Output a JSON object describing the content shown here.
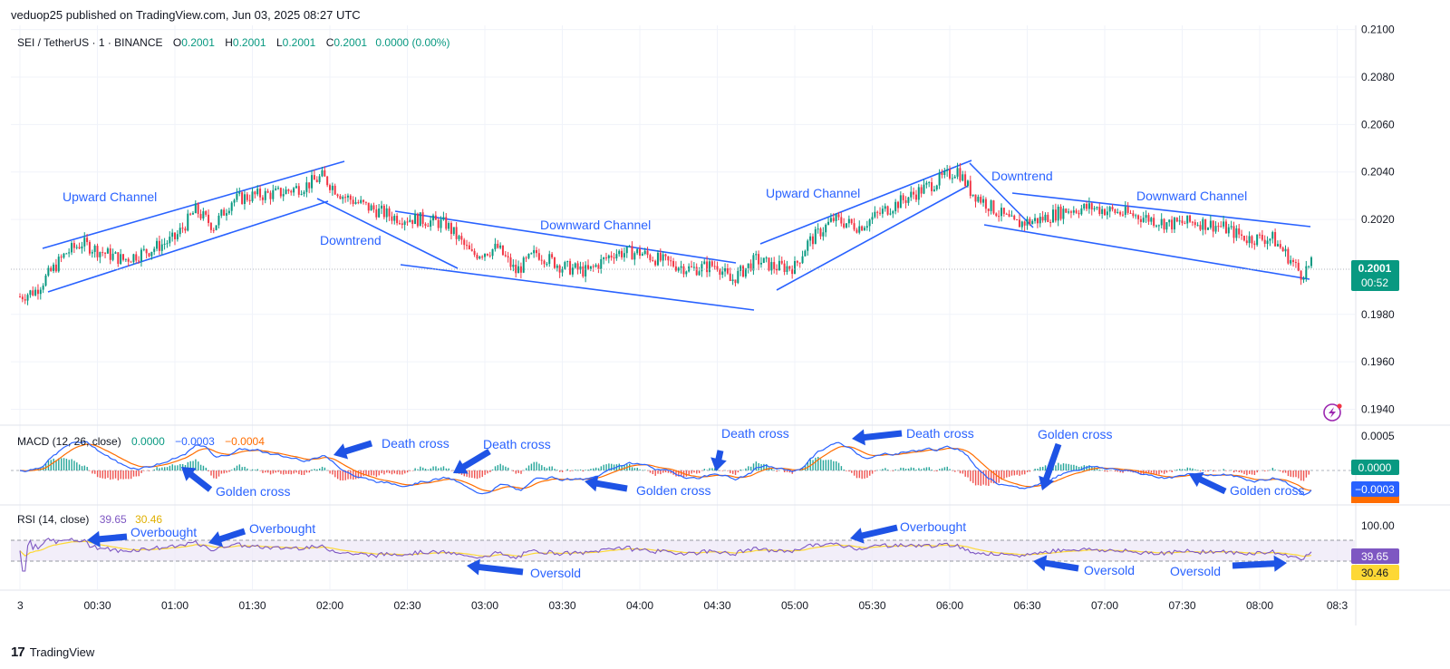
{
  "header": {
    "published": "veduop25 published on TradingView.com, Jun 03, 2025 08:27 UTC"
  },
  "legend": {
    "symbol": "SEI / TetherUS · 1 · BINANCE",
    "ohlc": [
      {
        "k": "O",
        "v": "0.2001"
      },
      {
        "k": "H",
        "v": "0.2001"
      },
      {
        "k": "L",
        "v": "0.2001"
      },
      {
        "k": "C",
        "v": "0.2001"
      }
    ],
    "change": "0.0000 (0.00%)"
  },
  "price_badge": {
    "price": "0.2001",
    "countdown": "00:52"
  },
  "macd": {
    "label": "MACD (12, 26, close)",
    "hist": "0.0000",
    "macd": "−0.0003",
    "signal": "−0.0004",
    "badge_hist": "0.0000",
    "badge_macd": "−0.0003",
    "tick": "0.0005"
  },
  "rsi": {
    "label": "RSI (14, close)",
    "rsi": "39.65",
    "ma": "30.46",
    "badge_rsi": "39.65",
    "badge_ma": "30.46",
    "tick": "100.00"
  },
  "footer": {
    "brand": "TradingView",
    "logo": "17"
  },
  "colors": {
    "up": "#089981",
    "down": "#f23645",
    "line": "#2962ff",
    "signal": "#ff6d00",
    "rsi": "#7e57c2",
    "rsi_ma": "#fdd835"
  },
  "chart_data": {
    "type": "candlestick",
    "title": "SEI / TetherUS · 1 · BINANCE",
    "price_axis": {
      "ticks": [
        "0.2100",
        "0.2080",
        "0.2060",
        "0.2040",
        "0.2020",
        "0.1980",
        "0.1960",
        "0.1940"
      ],
      "range": [
        0.1936,
        0.2101
      ]
    },
    "time_axis": {
      "ticks": [
        "3",
        "00:30",
        "01:00",
        "01:30",
        "02:00",
        "02:30",
        "03:00",
        "03:30",
        "04:00",
        "04:30",
        "05:00",
        "05:30",
        "06:00",
        "06:30",
        "07:00",
        "07:30",
        "08:00",
        "08:3"
      ]
    },
    "price_path": [
      {
        "t": "00:00",
        "p": 0.19875
      },
      {
        "t": "00:06",
        "p": 0.199
      },
      {
        "t": "00:12",
        "p": 0.1998
      },
      {
        "t": "00:18",
        "p": 0.2006
      },
      {
        "t": "00:24",
        "p": 0.201
      },
      {
        "t": "00:30",
        "p": 0.2007
      },
      {
        "t": "00:40",
        "p": 0.2003
      },
      {
        "t": "00:50",
        "p": 0.2007
      },
      {
        "t": "01:00",
        "p": 0.2012
      },
      {
        "t": "01:08",
        "p": 0.2024
      },
      {
        "t": "01:15",
        "p": 0.2017
      },
      {
        "t": "01:22",
        "p": 0.2028
      },
      {
        "t": "01:30",
        "p": 0.203
      },
      {
        "t": "01:40",
        "p": 0.2031
      },
      {
        "t": "01:50",
        "p": 0.2034
      },
      {
        "t": "01:57",
        "p": 0.2038
      },
      {
        "t": "02:05",
        "p": 0.203
      },
      {
        "t": "02:15",
        "p": 0.2025
      },
      {
        "t": "02:25",
        "p": 0.2021
      },
      {
        "t": "02:35",
        "p": 0.202
      },
      {
        "t": "02:45",
        "p": 0.2018
      },
      {
        "t": "02:55",
        "p": 0.2005
      },
      {
        "t": "03:05",
        "p": 0.2008
      },
      {
        "t": "03:12",
        "p": 0.1998
      },
      {
        "t": "03:20",
        "p": 0.2006
      },
      {
        "t": "03:30",
        "p": 0.2
      },
      {
        "t": "03:40",
        "p": 0.1998
      },
      {
        "t": "03:50",
        "p": 0.2006
      },
      {
        "t": "04:00",
        "p": 0.2006
      },
      {
        "t": "04:10",
        "p": 0.2002
      },
      {
        "t": "04:20",
        "p": 0.1999
      },
      {
        "t": "04:30",
        "p": 0.2001
      },
      {
        "t": "04:35",
        "p": 0.1994
      },
      {
        "t": "04:45",
        "p": 0.2003
      },
      {
        "t": "04:52",
        "p": 0.2
      },
      {
        "t": "05:00",
        "p": 0.2
      },
      {
        "t": "05:05",
        "p": 0.201
      },
      {
        "t": "05:15",
        "p": 0.202
      },
      {
        "t": "05:25",
        "p": 0.2017
      },
      {
        "t": "05:35",
        "p": 0.2024
      },
      {
        "t": "05:45",
        "p": 0.203
      },
      {
        "t": "05:55",
        "p": 0.2036
      },
      {
        "t": "06:03",
        "p": 0.2041
      },
      {
        "t": "06:08",
        "p": 0.2032
      },
      {
        "t": "06:15",
        "p": 0.2026
      },
      {
        "t": "06:25",
        "p": 0.2018
      },
      {
        "t": "06:35",
        "p": 0.202
      },
      {
        "t": "06:45",
        "p": 0.2024
      },
      {
        "t": "06:55",
        "p": 0.2025
      },
      {
        "t": "07:05",
        "p": 0.2023
      },
      {
        "t": "07:15",
        "p": 0.2021
      },
      {
        "t": "07:25",
        "p": 0.2018
      },
      {
        "t": "07:35",
        "p": 0.2019
      },
      {
        "t": "07:45",
        "p": 0.2017
      },
      {
        "t": "07:55",
        "p": 0.2012
      },
      {
        "t": "08:05",
        "p": 0.2012
      },
      {
        "t": "08:12",
        "p": 0.2003
      },
      {
        "t": "08:16",
        "p": 0.1997
      },
      {
        "t": "08:20",
        "p": 0.2001
      }
    ],
    "last_price": 0.2001,
    "annotations": [
      "Upward Channel",
      "Downtrend",
      "Downward Channel",
      "Upward Channel",
      "Downtrend",
      "Downward Channel"
    ],
    "macd_annotations": [
      "Death cross",
      "Death cross",
      "Death cross",
      "Death cross",
      "Golden cross",
      "Golden cross",
      "Golden cross",
      "Golden cross"
    ],
    "rsi_annotations": [
      "Overbought",
      "Overbought",
      "Overbought",
      "Oversold",
      "Oversold",
      "Oversold"
    ]
  }
}
